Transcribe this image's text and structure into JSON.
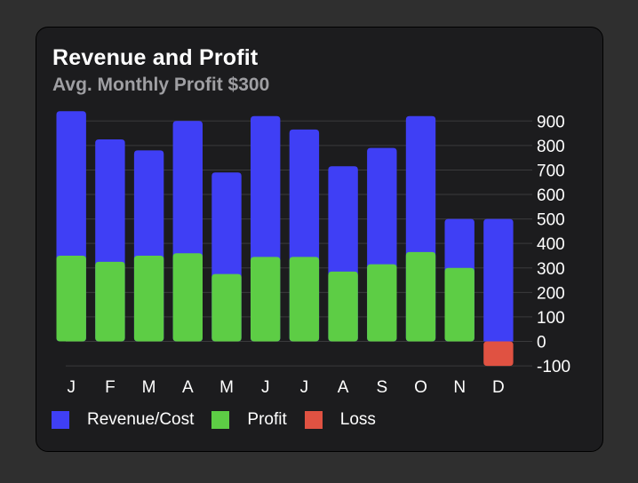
{
  "card": {
    "title": "Revenue and Profit",
    "subtitle": "Avg. Monthly Profit $300"
  },
  "colors": {
    "revenue": "#3f3ff5",
    "profit": "#5dcd45",
    "loss": "#e05242",
    "grid": "#3a3a3c",
    "text": "#ffffff"
  },
  "legend": [
    {
      "label": "Revenue/Cost",
      "color": "#3f3ff5"
    },
    {
      "label": "Profit",
      "color": "#5dcd45"
    },
    {
      "label": "Loss",
      "color": "#e05242"
    }
  ],
  "chart_data": {
    "type": "bar",
    "stacked": "overlay",
    "title": "Revenue and Profit",
    "subtitle": "Avg. Monthly Profit $300",
    "categories": [
      "J",
      "F",
      "M",
      "A",
      "M",
      "J",
      "J",
      "A",
      "S",
      "O",
      "N",
      "D"
    ],
    "series": [
      {
        "name": "Revenue/Cost",
        "values": [
          940,
          825,
          780,
          900,
          690,
          920,
          865,
          715,
          790,
          920,
          500,
          500
        ]
      },
      {
        "name": "Profit",
        "values": [
          350,
          325,
          350,
          360,
          275,
          345,
          345,
          285,
          315,
          365,
          300,
          0
        ]
      },
      {
        "name": "Loss",
        "values": [
          0,
          0,
          0,
          0,
          0,
          0,
          0,
          0,
          0,
          0,
          0,
          -100
        ]
      }
    ],
    "y_ticks": [
      "900",
      "800",
      "700",
      "600",
      "500",
      "400",
      "300",
      "200",
      "100",
      "0",
      "-100"
    ],
    "y_tick_values": [
      900,
      800,
      700,
      600,
      500,
      400,
      300,
      200,
      100,
      0,
      -100
    ],
    "ylim": [
      -100,
      900
    ],
    "y_axis_position": "right",
    "grid": true,
    "xlabel": "",
    "ylabel": "",
    "legend_position": "bottom-left"
  }
}
